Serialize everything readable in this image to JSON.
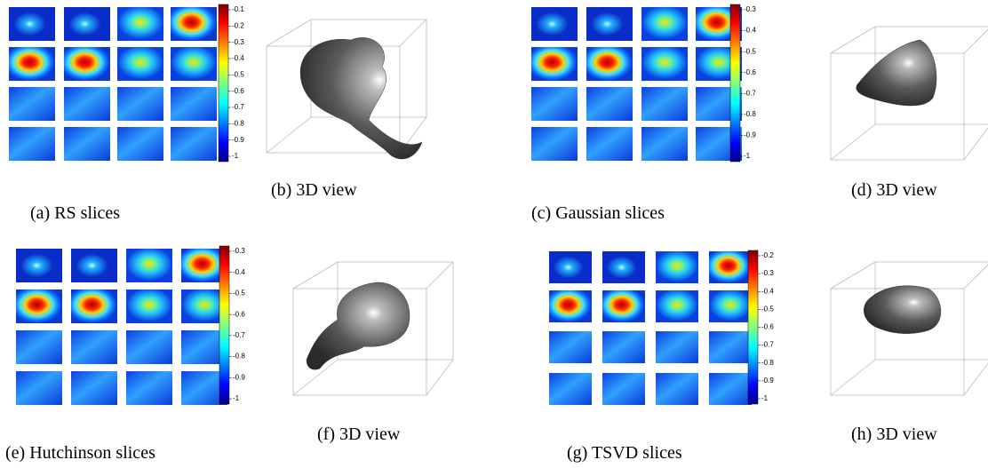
{
  "panels": [
    {
      "caption": "(a) RS slices",
      "colorbar_ticks": [
        "-0.1",
        "-0.2",
        "-0.3",
        "-0.4",
        "-0.5",
        "-0.6",
        "-0.7",
        "-0.8",
        "-0.9",
        "-1"
      ]
    },
    {
      "caption": "(b) 3D view"
    },
    {
      "caption": "(c) Gaussian slices",
      "colorbar_ticks": [
        "-0.3",
        "-0.4",
        "-0.5",
        "-0.6",
        "-0.7",
        "-0.8",
        "-0.9",
        "-1"
      ]
    },
    {
      "caption": "(d) 3D view"
    },
    {
      "caption": "(e) Hutchinson slices",
      "colorbar_ticks": [
        "-0.3",
        "-0.4",
        "-0.5",
        "-0.6",
        "-0.7",
        "-0.8",
        "-0.9",
        "-1"
      ]
    },
    {
      "caption": "(f) 3D view"
    },
    {
      "caption": "(g) TSVD slices",
      "colorbar_ticks": [
        "-0.2",
        "-0.3",
        "-0.4",
        "-0.5",
        "-0.6",
        "-0.7",
        "-0.8",
        "-0.9",
        "-1"
      ]
    },
    {
      "caption": "(h) 3D view"
    }
  ]
}
